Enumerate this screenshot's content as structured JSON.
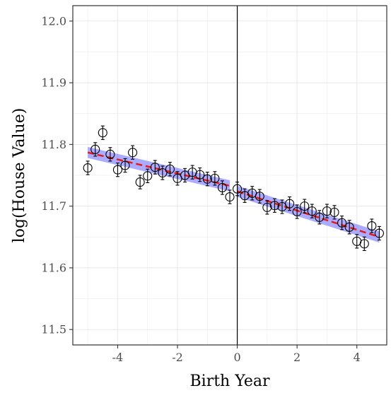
{
  "chart_data": {
    "type": "scatter",
    "xlabel": "Birth Year",
    "ylabel": "log(House Value)",
    "xlim": [
      -5.5,
      5.0
    ],
    "ylim": [
      11.475,
      12.025
    ],
    "x_ticks": [
      -4,
      -2,
      0,
      2,
      4
    ],
    "x_tick_labels": [
      "-4",
      "-2",
      "0",
      "2",
      "4"
    ],
    "y_ticks": [
      11.5,
      11.6,
      11.7,
      11.8,
      11.9,
      12.0
    ],
    "y_tick_labels": [
      "11.5",
      "11.6",
      "11.7",
      "11.8",
      "11.9",
      "12.0"
    ],
    "grid": true,
    "cutoff_x": 0,
    "points": [
      {
        "x": -5.0,
        "y": 11.762,
        "lo": 11.751,
        "hi": 11.773
      },
      {
        "x": -4.75,
        "y": 11.792,
        "lo": 11.781,
        "hi": 11.803
      },
      {
        "x": -4.5,
        "y": 11.819,
        "lo": 11.808,
        "hi": 11.83
      },
      {
        "x": -4.25,
        "y": 11.784,
        "lo": 11.773,
        "hi": 11.795
      },
      {
        "x": -4.0,
        "y": 11.759,
        "lo": 11.748,
        "hi": 11.77
      },
      {
        "x": -3.75,
        "y": 11.766,
        "lo": 11.755,
        "hi": 11.777
      },
      {
        "x": -3.5,
        "y": 11.787,
        "lo": 11.776,
        "hi": 11.798
      },
      {
        "x": -3.25,
        "y": 11.739,
        "lo": 11.728,
        "hi": 11.75
      },
      {
        "x": -3.0,
        "y": 11.749,
        "lo": 11.738,
        "hi": 11.76
      },
      {
        "x": -2.75,
        "y": 11.763,
        "lo": 11.752,
        "hi": 11.774
      },
      {
        "x": -2.5,
        "y": 11.754,
        "lo": 11.743,
        "hi": 11.765
      },
      {
        "x": -2.25,
        "y": 11.76,
        "lo": 11.749,
        "hi": 11.771
      },
      {
        "x": -2.0,
        "y": 11.745,
        "lo": 11.734,
        "hi": 11.756
      },
      {
        "x": -1.75,
        "y": 11.75,
        "lo": 11.739,
        "hi": 11.761
      },
      {
        "x": -1.5,
        "y": 11.755,
        "lo": 11.744,
        "hi": 11.766
      },
      {
        "x": -1.25,
        "y": 11.751,
        "lo": 11.74,
        "hi": 11.762
      },
      {
        "x": -1.0,
        "y": 11.744,
        "lo": 11.733,
        "hi": 11.755
      },
      {
        "x": -0.75,
        "y": 11.745,
        "lo": 11.734,
        "hi": 11.756
      },
      {
        "x": -0.5,
        "y": 11.73,
        "lo": 11.719,
        "hi": 11.741
      },
      {
        "x": -0.25,
        "y": 11.715,
        "lo": 11.704,
        "hi": 11.726
      },
      {
        "x": 0.0,
        "y": 11.728,
        "lo": 11.717,
        "hi": 11.739
      },
      {
        "x": 0.25,
        "y": 11.717,
        "lo": 11.706,
        "hi": 11.728
      },
      {
        "x": 0.5,
        "y": 11.721,
        "lo": 11.71,
        "hi": 11.732
      },
      {
        "x": 0.75,
        "y": 11.716,
        "lo": 11.705,
        "hi": 11.727
      },
      {
        "x": 1.0,
        "y": 11.698,
        "lo": 11.687,
        "hi": 11.709
      },
      {
        "x": 1.25,
        "y": 11.701,
        "lo": 11.69,
        "hi": 11.712
      },
      {
        "x": 1.5,
        "y": 11.699,
        "lo": 11.688,
        "hi": 11.71
      },
      {
        "x": 1.75,
        "y": 11.704,
        "lo": 11.693,
        "hi": 11.715
      },
      {
        "x": 2.0,
        "y": 11.691,
        "lo": 11.68,
        "hi": 11.702
      },
      {
        "x": 2.25,
        "y": 11.7,
        "lo": 11.689,
        "hi": 11.711
      },
      {
        "x": 2.5,
        "y": 11.692,
        "lo": 11.681,
        "hi": 11.703
      },
      {
        "x": 2.75,
        "y": 11.682,
        "lo": 11.671,
        "hi": 11.693
      },
      {
        "x": 3.0,
        "y": 11.692,
        "lo": 11.681,
        "hi": 11.703
      },
      {
        "x": 3.25,
        "y": 11.69,
        "lo": 11.679,
        "hi": 11.701
      },
      {
        "x": 3.5,
        "y": 11.673,
        "lo": 11.662,
        "hi": 11.684
      },
      {
        "x": 3.75,
        "y": 11.666,
        "lo": 11.655,
        "hi": 11.677
      },
      {
        "x": 4.0,
        "y": 11.643,
        "lo": 11.632,
        "hi": 11.654
      },
      {
        "x": 4.25,
        "y": 11.639,
        "lo": 11.628,
        "hi": 11.65
      },
      {
        "x": 4.5,
        "y": 11.668,
        "lo": 11.657,
        "hi": 11.679
      },
      {
        "x": 4.75,
        "y": 11.656,
        "lo": 11.645,
        "hi": 11.667
      }
    ],
    "fits": [
      {
        "x": [
          -5.0,
          -0.25
        ],
        "y": [
          11.787,
          11.733
        ],
        "band_halfwidth": 0.009
      },
      {
        "x": [
          0.0,
          4.75
        ],
        "y": [
          11.724,
          11.65
        ],
        "band_halfwidth": 0.009
      }
    ],
    "colors": {
      "fit_line": "#e41a1c",
      "confidence_band": "#6666ff",
      "cutoff_line": "#000000",
      "grid": "#ebebeb",
      "panel_border": "#333333",
      "marker": "#000000"
    }
  }
}
